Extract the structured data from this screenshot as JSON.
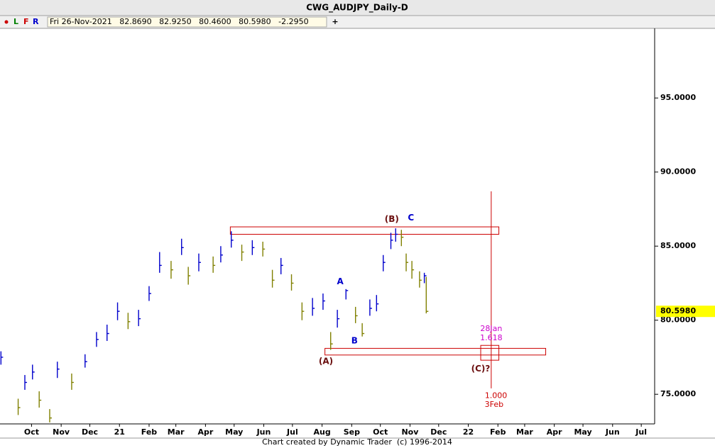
{
  "chart_data": {
    "type": "ohlc",
    "title": "CWG_AUDJPY_Daily-D",
    "toolbar": [
      "L",
      "F",
      "R",
      "+"
    ],
    "info": "Fri 26-Nov-2021   82.8690   82.9250   80.4600   80.5980   -2.2950",
    "footer": "Chart created by Dynamic Trader  (c) 1996-2014",
    "xlim": [
      -3,
      682
    ],
    "ylim": [
      73.0,
      99.7
    ],
    "xticks": [
      {
        "value": 30,
        "label": "Oct"
      },
      {
        "value": 61,
        "label": "Nov"
      },
      {
        "value": 91,
        "label": "Dec"
      },
      {
        "value": 122,
        "label": "21"
      },
      {
        "value": 153,
        "label": "Feb"
      },
      {
        "value": 181,
        "label": "Mar"
      },
      {
        "value": 212,
        "label": "Apr"
      },
      {
        "value": 242,
        "label": "May"
      },
      {
        "value": 273,
        "label": "Jun"
      },
      {
        "value": 303,
        "label": "Jul"
      },
      {
        "value": 334,
        "label": "Aug"
      },
      {
        "value": 365,
        "label": "Sep"
      },
      {
        "value": 395,
        "label": "Oct"
      },
      {
        "value": 426,
        "label": "Nov"
      },
      {
        "value": 456,
        "label": "Dec"
      },
      {
        "value": 487,
        "label": "22"
      },
      {
        "value": 518,
        "label": "Feb"
      },
      {
        "value": 546,
        "label": "Mar"
      },
      {
        "value": 577,
        "label": "Apr"
      },
      {
        "value": 607,
        "label": "May"
      },
      {
        "value": 638,
        "label": "Jun"
      },
      {
        "value": 668,
        "label": "Jul"
      }
    ],
    "yticks": [
      {
        "value": 75,
        "label": "75.0000"
      },
      {
        "value": 80,
        "label": "80.0000"
      },
      {
        "value": 85,
        "label": "85.0000"
      },
      {
        "value": 90,
        "label": "90.0000"
      },
      {
        "value": 95,
        "label": "95.0000"
      }
    ],
    "up_color": "#0000cc",
    "down_color": "#808000",
    "x": [
      -2,
      16,
      23,
      31,
      38,
      49,
      57,
      72,
      86,
      98,
      109,
      120,
      131,
      142,
      153,
      164,
      176,
      187,
      194,
      205,
      220,
      228,
      239,
      250,
      261,
      272,
      282,
      291,
      302,
      313,
      324,
      335,
      343,
      350,
      359,
      369,
      376,
      384,
      391,
      398,
      406,
      411,
      417,
      422,
      428,
      436,
      441,
      443
    ],
    "high": [
      77.9,
      74.7,
      76.3,
      77.0,
      75.2,
      74.0,
      77.2,
      76.4,
      77.7,
      79.2,
      79.7,
      81.2,
      80.5,
      80.7,
      82.3,
      84.6,
      84.0,
      85.5,
      83.6,
      84.5,
      84.3,
      85.0,
      86.0,
      85.1,
      85.4,
      85.3,
      83.4,
      84.2,
      83.1,
      81.2,
      81.5,
      81.8,
      79.2,
      80.7,
      82.1,
      80.9,
      79.8,
      81.4,
      81.7,
      84.4,
      85.9,
      86.2,
      86.1,
      84.5,
      84.0,
      83.3,
      83.2,
      82.925
    ],
    "low": [
      77.0,
      73.6,
      75.3,
      76.0,
      74.1,
      73.1,
      76.1,
      75.3,
      76.8,
      78.2,
      78.6,
      80.0,
      79.4,
      79.6,
      81.3,
      83.2,
      82.8,
      84.4,
      82.4,
      83.3,
      83.2,
      83.9,
      84.9,
      84.0,
      84.4,
      84.3,
      82.2,
      83.1,
      82.0,
      80.0,
      80.3,
      80.7,
      78.0,
      79.5,
      81.4,
      79.8,
      78.9,
      80.3,
      80.6,
      83.3,
      84.8,
      85.3,
      85.0,
      83.3,
      82.8,
      82.2,
      82.5,
      80.46
    ],
    "close": [
      77.5,
      74.1,
      75.8,
      76.5,
      74.6,
      73.4,
      76.7,
      75.8,
      77.2,
      78.7,
      79.1,
      80.6,
      79.9,
      80.1,
      81.8,
      83.7,
      83.4,
      84.9,
      83.0,
      83.9,
      83.7,
      84.4,
      85.4,
      84.6,
      84.9,
      84.8,
      82.7,
      83.7,
      82.5,
      80.6,
      80.8,
      81.3,
      78.4,
      80.1,
      82.0,
      80.3,
      79.1,
      80.8,
      81.1,
      83.9,
      85.4,
      85.8,
      85.6,
      83.9,
      83.4,
      82.7,
      83.0,
      80.598
    ],
    "last_label": {
      "value": 80.598,
      "label": "80.5980"
    },
    "zones": [
      {
        "x": [
          238,
          519
        ],
        "y": [
          85.8,
          86.3
        ],
        "color": "#cc0000"
      },
      {
        "x": [
          337,
          568
        ],
        "y": [
          77.65,
          78.1
        ],
        "color": "#cc0000"
      },
      {
        "x": [
          500,
          519
        ],
        "y": [
          77.3,
          78.3
        ],
        "color": "#cc0000"
      }
    ],
    "vlines": [
      {
        "x": 511,
        "y": [
          75.4,
          88.7
        ],
        "color": "#cc0000"
      }
    ],
    "annotations": [
      {
        "text": "(B)",
        "x": 407,
        "y": 86.8,
        "color": "#6b0f0f",
        "style": "ann"
      },
      {
        "text": "C",
        "x": 427,
        "y": 86.9,
        "color": "#0000cc",
        "style": "ann"
      },
      {
        "text": "A",
        "x": 353,
        "y": 82.6,
        "color": "#0000cc",
        "style": "ann"
      },
      {
        "text": "B",
        "x": 368,
        "y": 78.6,
        "color": "#0000cc",
        "style": "ann"
      },
      {
        "text": "(A)",
        "x": 338,
        "y": 77.2,
        "color": "#6b0f0f",
        "style": "ann"
      },
      {
        "text": "(C)?",
        "x": 500,
        "y": 76.7,
        "color": "#6b0f0f",
        "style": "ann"
      },
      {
        "text": "28Jan",
        "x": 511,
        "y": 79.4,
        "color": "#cc00cc",
        "style": "fib"
      },
      {
        "text": "1.618",
        "x": 511,
        "y": 78.8,
        "color": "#cc00cc",
        "style": "fib"
      },
      {
        "text": "1.000",
        "x": 516,
        "y": 74.9,
        "color": "#cc0000",
        "style": "fib"
      },
      {
        "text": "3Feb",
        "x": 514,
        "y": 74.3,
        "color": "#cc0000",
        "style": "fib"
      }
    ]
  }
}
